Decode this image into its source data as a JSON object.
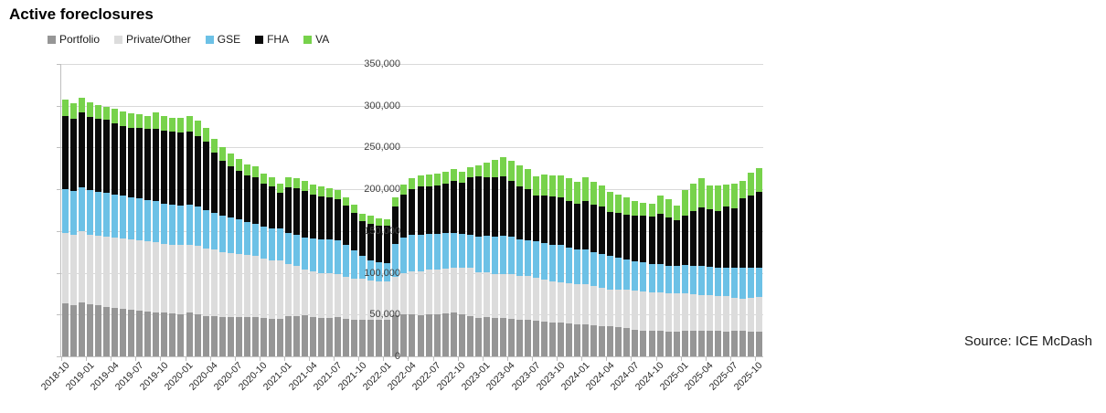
{
  "title": "Active foreclosures",
  "source_note": "Source: ICE McDash",
  "legend": [
    {
      "label": "Portfolio",
      "color": "#969696"
    },
    {
      "label": "Private/Other",
      "color": "#dcdcdc"
    },
    {
      "label": "GSE",
      "color": "#6cc1e6"
    },
    {
      "label": "FHA",
      "color": "#0a0a0a"
    },
    {
      "label": "VA",
      "color": "#77d24b"
    }
  ],
  "colors": {
    "gridline": "#d9d9d9",
    "axis": "#bfbfbf",
    "text": "#262626"
  },
  "chart_data": {
    "type": "bar",
    "stacked": true,
    "title": "Active foreclosures",
    "xlabel": "",
    "ylabel": "",
    "ylim": [
      0,
      350000
    ],
    "ytick_interval": 50000,
    "ytick_labels": [
      "350,000",
      "300,000",
      "250,000",
      "200,000",
      "150,000",
      "100,000",
      "50,000",
      "0"
    ],
    "grid": "horizontal",
    "legend_position": "top-left",
    "x_tick_step": 3,
    "x": [
      "2018-10",
      "2018-11",
      "2018-12",
      "2019-01",
      "2019-02",
      "2019-03",
      "2019-04",
      "2019-05",
      "2019-06",
      "2019-07",
      "2019-08",
      "2019-09",
      "2019-10",
      "2019-11",
      "2019-12",
      "2020-01",
      "2020-02",
      "2020-03",
      "2020-04",
      "2020-05",
      "2020-06",
      "2020-07",
      "2020-08",
      "2020-09",
      "2020-10",
      "2020-11",
      "2020-12",
      "2021-01",
      "2021-02",
      "2021-03",
      "2021-04",
      "2021-05",
      "2021-06",
      "2021-07",
      "2021-08",
      "2021-09",
      "2021-10",
      "2021-11",
      "2021-12",
      "2022-01",
      "2022-02",
      "2022-03",
      "2022-04",
      "2022-05",
      "2022-06",
      "2022-07",
      "2022-08",
      "2022-09",
      "2022-10",
      "2022-11",
      "2022-12",
      "2023-01",
      "2023-02",
      "2023-03",
      "2023-04",
      "2023-05",
      "2023-06",
      "2023-07",
      "2023-08",
      "2023-09",
      "2023-10",
      "2023-11",
      "2023-12",
      "2024-01",
      "2024-02",
      "2024-03",
      "2024-04",
      "2024-05",
      "2024-06",
      "2024-07",
      "2024-08",
      "2024-09",
      "2024-10",
      "2024-11",
      "2024-12",
      "2025-01",
      "2025-02",
      "2025-03",
      "2025-04",
      "2025-05",
      "2025-06",
      "2025-07",
      "2025-08",
      "2025-09",
      "2025-10"
    ],
    "series": [
      {
        "name": "Portfolio",
        "color": "#969696",
        "values": [
          63000,
          61000,
          65000,
          62000,
          61000,
          59000,
          58000,
          57000,
          56000,
          55000,
          54000,
          53000,
          52000,
          51000,
          50000,
          52000,
          50000,
          48000,
          48000,
          47000,
          47000,
          47000,
          47000,
          47000,
          46000,
          45000,
          45000,
          48000,
          48000,
          49000,
          47000,
          46000,
          46000,
          47000,
          45000,
          44000,
          44000,
          44000,
          44000,
          44000,
          49000,
          50000,
          50000,
          49000,
          50000,
          50000,
          51000,
          52000,
          50000,
          48000,
          46000,
          47000,
          46000,
          46000,
          45000,
          44000,
          44000,
          43000,
          42000,
          41000,
          40000,
          39000,
          38000,
          38000,
          37000,
          36000,
          36000,
          35000,
          34000,
          32000,
          31000,
          31000,
          31000,
          30000,
          30000,
          31000,
          31000,
          31000,
          31000,
          31000,
          30000,
          31000,
          31000,
          30000,
          30000
        ]
      },
      {
        "name": "Private/Other",
        "color": "#dcdcdc",
        "values": [
          85000,
          84000,
          85000,
          84000,
          83000,
          84000,
          84000,
          84000,
          84000,
          84000,
          84000,
          84000,
          83000,
          83000,
          83000,
          82000,
          82000,
          81000,
          80000,
          78000,
          77000,
          76000,
          74000,
          73000,
          71000,
          70000,
          70000,
          62000,
          60000,
          55000,
          55000,
          54000,
          54000,
          51000,
          50000,
          49000,
          49000,
          47000,
          46000,
          46000,
          46000,
          50000,
          52000,
          53000,
          54000,
          54000,
          54000,
          54000,
          56000,
          58000,
          55000,
          54000,
          53000,
          53000,
          53000,
          52000,
          52000,
          51000,
          50000,
          49000,
          49000,
          48000,
          48000,
          48000,
          47000,
          46000,
          44000,
          45000,
          46000,
          47000,
          47000,
          46000,
          46000,
          45000,
          45000,
          44000,
          43000,
          42000,
          42000,
          41000,
          42000,
          39000,
          38000,
          40000,
          41000
        ]
      },
      {
        "name": "GSE",
        "color": "#6cc1e6",
        "values": [
          52000,
          53000,
          52000,
          53000,
          53000,
          53000,
          52000,
          51000,
          50000,
          50000,
          49000,
          49000,
          48000,
          48000,
          48000,
          48000,
          47000,
          46000,
          44000,
          43000,
          42000,
          41000,
          40000,
          39000,
          38000,
          38000,
          38000,
          38000,
          38000,
          38000,
          39000,
          40000,
          40000,
          41000,
          38000,
          34000,
          27000,
          24000,
          23000,
          22000,
          40000,
          42000,
          43000,
          43000,
          43000,
          43000,
          43000,
          42000,
          41000,
          39000,
          42000,
          43000,
          44000,
          45000,
          45000,
          44000,
          43000,
          44000,
          44000,
          44000,
          44000,
          43000,
          42000,
          42000,
          41000,
          40000,
          40000,
          38000,
          36000,
          35000,
          35000,
          34000,
          34000,
          33000,
          33000,
          34000,
          34000,
          35000,
          34000,
          34000,
          34000,
          36000,
          37000,
          36000,
          35000
        ]
      },
      {
        "name": "FHA",
        "color": "#0a0a0a",
        "values": [
          88000,
          86000,
          90000,
          88000,
          87000,
          87000,
          85000,
          84000,
          83000,
          84000,
          85000,
          86000,
          87000,
          87000,
          87000,
          87000,
          85000,
          82000,
          72000,
          66000,
          62000,
          58000,
          56000,
          55000,
          52000,
          50000,
          43000,
          54000,
          55000,
          56000,
          53000,
          52000,
          50000,
          49000,
          47000,
          45000,
          42000,
          44000,
          44000,
          44000,
          44000,
          52000,
          55000,
          58000,
          57000,
          58000,
          59000,
          62000,
          61000,
          69000,
          73000,
          70000,
          71000,
          71000,
          67000,
          64000,
          61000,
          54000,
          57000,
          57000,
          57000,
          56000,
          55000,
          58000,
          57000,
          57000,
          53000,
          54000,
          54000,
          55000,
          55000,
          56000,
          60000,
          58000,
          55000,
          60000,
          66000,
          70000,
          69000,
          68000,
          73000,
          71000,
          83000,
          87000,
          91000
        ]
      },
      {
        "name": "VA",
        "color": "#77d24b",
        "values": [
          19000,
          19000,
          18000,
          17000,
          17000,
          16000,
          17000,
          17000,
          18000,
          17000,
          16000,
          20000,
          18000,
          17000,
          18000,
          19000,
          18000,
          17000,
          16000,
          16000,
          15000,
          14000,
          13000,
          13000,
          12000,
          11000,
          11000,
          12000,
          12000,
          12000,
          12000,
          12000,
          11000,
          11000,
          10000,
          10000,
          9000,
          9000,
          8000,
          8000,
          11000,
          12000,
          13000,
          14000,
          14000,
          14000,
          14000,
          14000,
          13000,
          13000,
          13000,
          18000,
          21000,
          24000,
          24000,
          25000,
          24000,
          24000,
          25000,
          26000,
          27000,
          27000,
          26000,
          28000,
          27000,
          26000,
          24000,
          22000,
          20000,
          17000,
          16000,
          16000,
          22000,
          22000,
          18000,
          30000,
          33000,
          35000,
          29000,
          31000,
          27000,
          30000,
          21000,
          27000,
          28000
        ]
      }
    ]
  }
}
